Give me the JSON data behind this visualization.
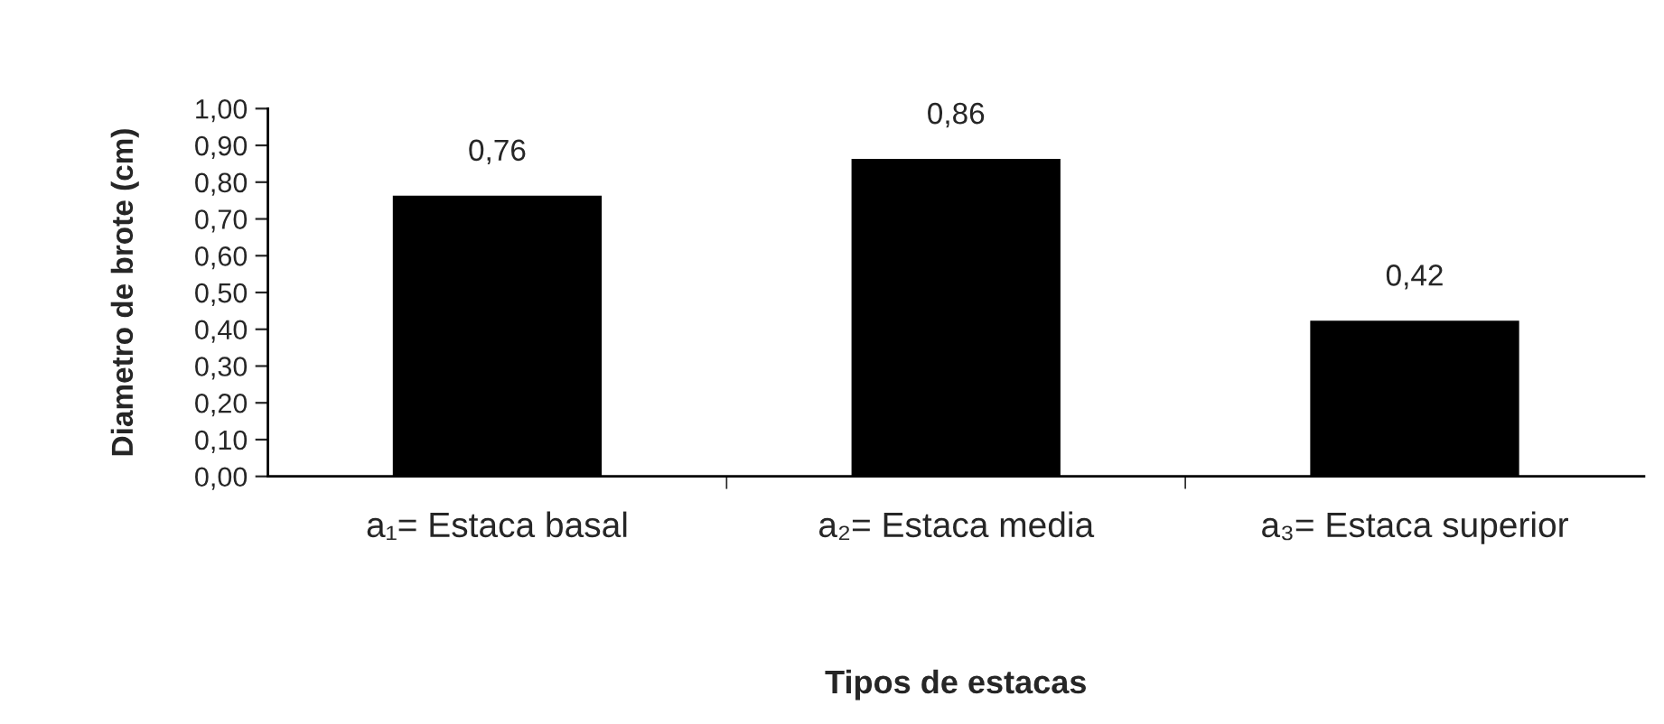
{
  "chart_data": {
    "type": "bar",
    "categories": [
      "a₁= Estaca basal",
      "a₂= Estaca media",
      "a₃= Estaca superior"
    ],
    "values": [
      0.76,
      0.86,
      0.42
    ],
    "value_labels": [
      "0,76",
      "0,86",
      "0,42"
    ],
    "color": "#000000",
    "xlabel": "Tipos de estacas",
    "ylabel": "Diametro de brote (cm)",
    "ylim": [
      0,
      1.0
    ],
    "yticks": [
      {
        "value": 0,
        "label": "0,00"
      },
      {
        "value": 0.1,
        "label": "0,10"
      },
      {
        "value": 0.2,
        "label": "0,20"
      },
      {
        "value": 0.3,
        "label": "0,30"
      },
      {
        "value": 0.4,
        "label": "0,40"
      },
      {
        "value": 0.5,
        "label": "0,50"
      },
      {
        "value": 0.6,
        "label": "0,60"
      },
      {
        "value": 0.7,
        "label": "0,70"
      },
      {
        "value": 0.8,
        "label": "0,80"
      },
      {
        "value": 0.9,
        "label": "0,90"
      },
      {
        "value": 1.0,
        "label": "1,00"
      }
    ],
    "grid": false
  }
}
